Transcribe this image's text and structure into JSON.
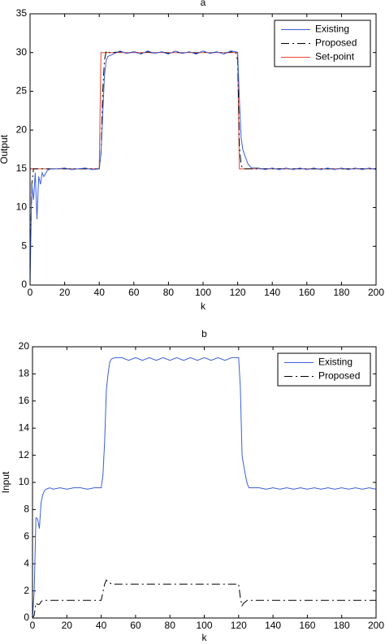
{
  "chart_data": [
    {
      "type": "line",
      "title": "a",
      "xlabel": "k",
      "ylabel": "Output",
      "legend": "upper right",
      "x": [
        0,
        1,
        2,
        3,
        4,
        5,
        6,
        7,
        8,
        10,
        12,
        16,
        20,
        24,
        28,
        32,
        36,
        40,
        41,
        42,
        43,
        44,
        45,
        46,
        48,
        52,
        56,
        60,
        64,
        68,
        72,
        76,
        80,
        84,
        88,
        92,
        96,
        100,
        104,
        108,
        112,
        116,
        119,
        120,
        121,
        122,
        123,
        124,
        125,
        126,
        128,
        132,
        136,
        140,
        144,
        148,
        152,
        156,
        160,
        164,
        168,
        172,
        176,
        180,
        184,
        188,
        192,
        196,
        200
      ],
      "xlim": [
        0,
        200
      ],
      "xticks": [
        0,
        20,
        40,
        60,
        80,
        100,
        120,
        140,
        160,
        180,
        200
      ],
      "ylim": [
        0,
        35
      ],
      "yticks": [
        0,
        5,
        10,
        15,
        20,
        25,
        30,
        35
      ],
      "series": [
        {
          "name": "Existing",
          "color": "#3a5fd9",
          "dash": false,
          "values": [
            0,
            13,
            11,
            14.5,
            8.5,
            14,
            13,
            14.5,
            14,
            14.8,
            15,
            15,
            15.1,
            14.9,
            15,
            15.1,
            14.9,
            15,
            17,
            22,
            27,
            29,
            29.5,
            29.6,
            29.8,
            30.2,
            29.9,
            30.1,
            29.8,
            30.2,
            29.9,
            30.1,
            29.8,
            30.2,
            29.9,
            30.1,
            29.8,
            30.2,
            29.9,
            30.1,
            29.8,
            30.2,
            30.1,
            30,
            24,
            19,
            17.5,
            16.8,
            16.2,
            15.6,
            15.1,
            15.1,
            14.9,
            15.1,
            14.9,
            15.1,
            14.9,
            15.1,
            14.9,
            15.1,
            14.9,
            15.1,
            14.9,
            15.1,
            14.9,
            15.1,
            14.9,
            15.1,
            14.9
          ]
        },
        {
          "name": "Proposed",
          "color": "#000000",
          "dash": true,
          "values": [
            2,
            13,
            15,
            15,
            15,
            15,
            15,
            15,
            15,
            15,
            15,
            15,
            15,
            15,
            15,
            15,
            15,
            15,
            17,
            25,
            29,
            30.2,
            30.1,
            30,
            30,
            30.1,
            29.9,
            30.1,
            29.9,
            30.1,
            29.9,
            30.1,
            29.9,
            30.1,
            29.9,
            30.1,
            29.9,
            30.1,
            29.9,
            30.1,
            29.9,
            30.1,
            30,
            29,
            18,
            15.5,
            15,
            15,
            15,
            15,
            15,
            15,
            15,
            15,
            15,
            15,
            15,
            15,
            15,
            15,
            15,
            15,
            15,
            15,
            15,
            15,
            15,
            15,
            15
          ]
        },
        {
          "name": "Set-point",
          "color": "#e8422c",
          "dash": false,
          "values": [
            15,
            15,
            15,
            15,
            15,
            15,
            15,
            15,
            15,
            15,
            15,
            15,
            15,
            15,
            15,
            15,
            15,
            15,
            30,
            30,
            30,
            30,
            30,
            30,
            30,
            30,
            30,
            30,
            30,
            30,
            30,
            30,
            30,
            30,
            30,
            30,
            30,
            30,
            30,
            30,
            30,
            30,
            30,
            30,
            15,
            15,
            15,
            15,
            15,
            15,
            15,
            15,
            15,
            15,
            15,
            15,
            15,
            15,
            15,
            15,
            15,
            15,
            15,
            15,
            15,
            15,
            15,
            15,
            15
          ]
        }
      ]
    },
    {
      "type": "line",
      "title": "b",
      "xlabel": "k",
      "ylabel": "Input",
      "legend": "upper right",
      "x": [
        0,
        1,
        2,
        3,
        4,
        5,
        6,
        7,
        8,
        10,
        12,
        16,
        20,
        24,
        28,
        32,
        36,
        40,
        41,
        42,
        43,
        44,
        45,
        46,
        48,
        52,
        56,
        60,
        64,
        68,
        72,
        76,
        80,
        84,
        88,
        92,
        96,
        100,
        104,
        108,
        112,
        116,
        119,
        120,
        121,
        122,
        123,
        124,
        125,
        126,
        128,
        132,
        136,
        140,
        144,
        148,
        152,
        156,
        160,
        164,
        168,
        172,
        176,
        180,
        184,
        188,
        192,
        196,
        200
      ],
      "xlim": [
        0,
        200
      ],
      "xticks": [
        0,
        20,
        40,
        60,
        80,
        100,
        120,
        140,
        160,
        180,
        200
      ],
      "ylim": [
        0,
        20
      ],
      "yticks": [
        0,
        2,
        4,
        6,
        8,
        10,
        12,
        14,
        16,
        18,
        20
      ],
      "series": [
        {
          "name": "Existing",
          "color": "#3a5fd9",
          "dash": false,
          "values": [
            0,
            2,
            7.4,
            7.3,
            6.6,
            8.5,
            9.1,
            9.4,
            9.5,
            9.6,
            9.5,
            9.6,
            9.5,
            9.6,
            9.6,
            9.5,
            9.6,
            9.6,
            10.5,
            13,
            16.8,
            18,
            18.9,
            19.1,
            19.2,
            19.2,
            19,
            19.2,
            19,
            19.2,
            19,
            19.2,
            19,
            19.2,
            19,
            19.2,
            19,
            19.2,
            19,
            19.2,
            19,
            19.2,
            19.2,
            19.2,
            17,
            12,
            11.2,
            10.5,
            9.9,
            9.6,
            9.6,
            9.6,
            9.5,
            9.6,
            9.5,
            9.6,
            9.5,
            9.6,
            9.5,
            9.6,
            9.5,
            9.6,
            9.5,
            9.6,
            9.5,
            9.6,
            9.5,
            9.6,
            9.5
          ]
        },
        {
          "name": "Proposed",
          "color": "#000000",
          "dash": true,
          "values": [
            0,
            0.2,
            1.1,
            1,
            1,
            1.2,
            1.3,
            1.3,
            1.3,
            1.3,
            1.3,
            1.3,
            1.3,
            1.3,
            1.3,
            1.3,
            1.3,
            1.3,
            1.9,
            2.5,
            2.8,
            2.7,
            2.6,
            2.5,
            2.5,
            2.5,
            2.5,
            2.5,
            2.5,
            2.5,
            2.5,
            2.5,
            2.5,
            2.5,
            2.5,
            2.5,
            2.5,
            2.5,
            2.5,
            2.5,
            2.5,
            2.5,
            2.5,
            2.5,
            1.5,
            0.9,
            1.1,
            1.2,
            1.3,
            1.3,
            1.3,
            1.3,
            1.3,
            1.3,
            1.3,
            1.3,
            1.3,
            1.3,
            1.3,
            1.3,
            1.3,
            1.3,
            1.3,
            1.3,
            1.3,
            1.3,
            1.3,
            1.3,
            1.3
          ]
        }
      ]
    }
  ]
}
